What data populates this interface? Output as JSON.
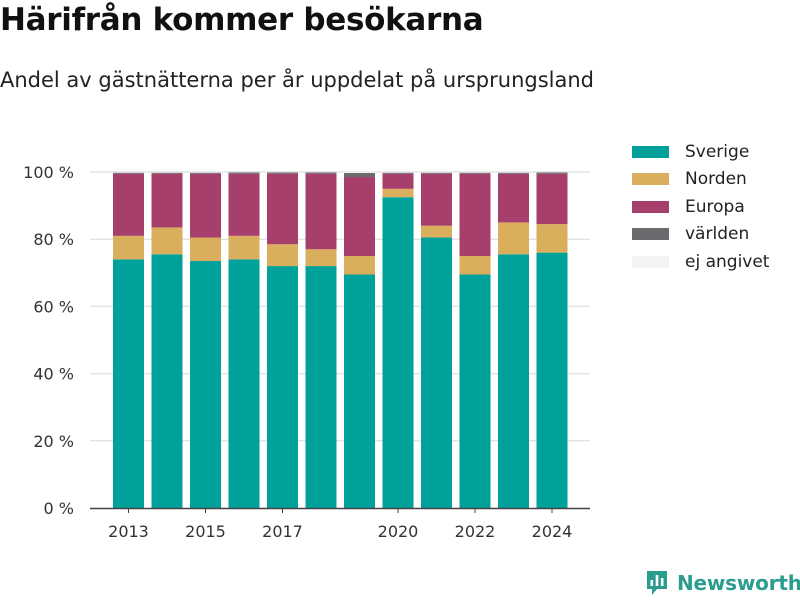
{
  "header": {
    "title": "Härifrån kommer besökarna",
    "subtitle": "Andel av gästnätterna per år uppdelat på ursprungsland"
  },
  "brand": {
    "name": "Newsworthy",
    "icon": "bar-chart-logo-icon"
  },
  "colors": {
    "Sverige": "#00a19a",
    "Norden": "#d9ae5c",
    "Europa": "#a63f6b",
    "världen": "#6b6b6f",
    "ej angivet": "#f3f3f3",
    "grid": "#e3e3e3",
    "axis": "#444444",
    "brand": "#2a9d8f"
  },
  "chart_data": {
    "type": "bar",
    "stacked": true,
    "title": "Härifrån kommer besökarna",
    "subtitle": "Andel av gästnätterna per år uppdelat på ursprungsland",
    "categories": [
      "2013",
      "2014",
      "2015",
      "2016",
      "2017",
      "2018",
      "2019",
      "2020",
      "2021",
      "2022",
      "2023",
      "2024"
    ],
    "x_tick_labels": [
      "2013",
      "2015",
      "2017",
      "2020",
      "2022",
      "2024"
    ],
    "y_ticks": [
      "0 %",
      "20 %",
      "40 %",
      "60 %",
      "80 %",
      "100 %"
    ],
    "ylim": [
      0,
      100
    ],
    "grid": true,
    "legend_position": "right",
    "series": [
      {
        "name": "Sverige",
        "values": [
          74,
          75.5,
          73.5,
          74,
          72,
          72,
          69.5,
          92.5,
          80.5,
          69.5,
          75.5,
          76
        ]
      },
      {
        "name": "Norden",
        "values": [
          7,
          8,
          7,
          7,
          6.5,
          5,
          5.5,
          2.5,
          3.5,
          5.5,
          9.5,
          8.5
        ]
      },
      {
        "name": "Europa",
        "values": [
          18.5,
          16,
          19,
          18.5,
          21,
          22.5,
          23.5,
          4.5,
          15.5,
          24.5,
          14.5,
          15
        ]
      },
      {
        "name": "världen",
        "values": [
          0.3,
          0.3,
          0.3,
          0.4,
          0.4,
          0.4,
          1.2,
          0.3,
          0.3,
          0.3,
          0.3,
          0.4
        ]
      },
      {
        "name": "ej angivet",
        "values": [
          0.2,
          0.2,
          0.2,
          0.1,
          0.1,
          0.1,
          0.3,
          0.2,
          0.2,
          0.2,
          0.2,
          0.1
        ]
      }
    ]
  }
}
